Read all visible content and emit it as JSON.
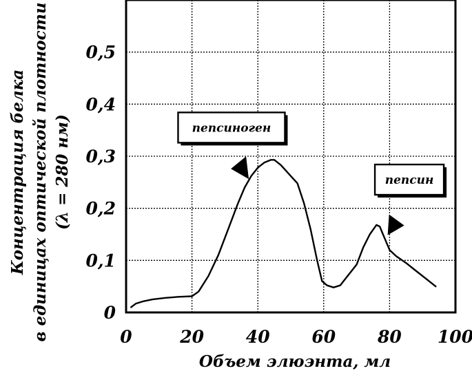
{
  "chart_data": {
    "type": "line",
    "title": "",
    "xlabel": "Объем элюэнта, мл",
    "ylabel_line1": "Концентрация белка",
    "ylabel_line2": "в единицах оптической плотности",
    "ylabel_line3": "(λ = 280 нм)",
    "xlim": [
      0,
      100
    ],
    "ylim": [
      0,
      0.6
    ],
    "xticks": [
      0,
      20,
      40,
      60,
      80,
      100
    ],
    "xtick_labels": [
      "0",
      "20",
      "40",
      "60",
      "80",
      "100"
    ],
    "yticks": [
      0,
      0.1,
      0.2,
      0.3,
      0.4,
      0.5
    ],
    "ytick_labels": [
      "0",
      "0,1",
      "0,2",
      "0,3",
      "0,4",
      "0,5"
    ],
    "grid": true,
    "series": [
      {
        "x": [
          1.5,
          3,
          5,
          8,
          12,
          16,
          20,
          22,
          25,
          28,
          31,
          34,
          36,
          38,
          40,
          42,
          44,
          45,
          47,
          50,
          52,
          54,
          56,
          58,
          59.5,
          61,
          63,
          65,
          67,
          70,
          72,
          74,
          76,
          77,
          78,
          79,
          80,
          82,
          85,
          88,
          91,
          94
        ],
        "y": [
          0.01,
          0.017,
          0.021,
          0.025,
          0.028,
          0.03,
          0.031,
          0.04,
          0.07,
          0.11,
          0.16,
          0.21,
          0.24,
          0.262,
          0.278,
          0.288,
          0.293,
          0.293,
          0.283,
          0.262,
          0.248,
          0.21,
          0.16,
          0.1,
          0.06,
          0.052,
          0.048,
          0.052,
          0.068,
          0.092,
          0.125,
          0.15,
          0.168,
          0.165,
          0.15,
          0.135,
          0.12,
          0.108,
          0.095,
          0.08,
          0.065,
          0.05
        ]
      }
    ],
    "annotations": [
      {
        "text": "пепсиноген",
        "x": 32,
        "y": 0.355,
        "arrow_to": [
          36,
          0.26
        ]
      },
      {
        "text": "пепсин",
        "x": 86,
        "y": 0.255,
        "arrow_to": [
          79,
          0.175
        ]
      }
    ]
  }
}
